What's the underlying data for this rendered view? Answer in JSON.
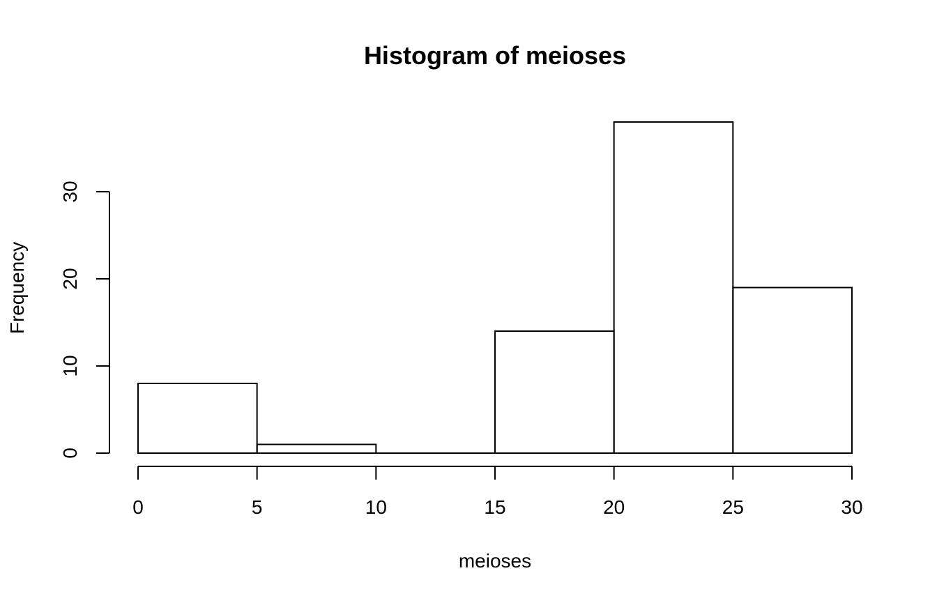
{
  "chart_data": {
    "type": "bar",
    "title": "Histogram of meioses",
    "xlabel": "meioses",
    "ylabel": "Frequency",
    "bins": [
      {
        "start": 0,
        "end": 5,
        "count": 8
      },
      {
        "start": 5,
        "end": 10,
        "count": 1
      },
      {
        "start": 10,
        "end": 15,
        "count": 0
      },
      {
        "start": 15,
        "end": 20,
        "count": 14
      },
      {
        "start": 20,
        "end": 25,
        "count": 38
      },
      {
        "start": 25,
        "end": 30,
        "count": 19
      }
    ],
    "xlim": [
      0,
      30
    ],
    "ylim": [
      0,
      38
    ],
    "xticks": [
      0,
      5,
      10,
      15,
      20,
      25,
      30
    ],
    "yticks": [
      0,
      10,
      20,
      30
    ],
    "grid": false,
    "legend": "none",
    "colors": {
      "bar_fill": "#ffffff",
      "bar_stroke": "#000000"
    }
  }
}
